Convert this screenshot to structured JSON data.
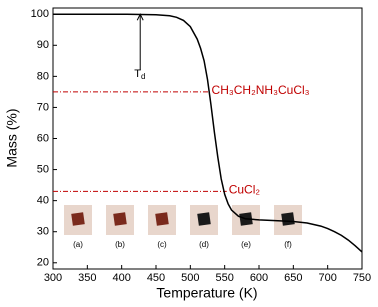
{
  "chart_data": {
    "type": "line",
    "x_label": "Temperature (K)",
    "y_label": "Mass (%)",
    "x": [
      300,
      350,
      400,
      450,
      470,
      480,
      490,
      500,
      510,
      515,
      520,
      525,
      530,
      535,
      540,
      545,
      550,
      555,
      560,
      570,
      580,
      600,
      620,
      650,
      670,
      690,
      700,
      710,
      720,
      730,
      740,
      750
    ],
    "values": [
      100,
      100,
      100,
      99.8,
      99.5,
      99,
      98,
      96,
      92,
      89,
      85,
      79,
      71,
      62,
      54,
      47,
      42,
      39,
      37,
      35,
      34.2,
      33.8,
      33.6,
      33.3,
      32.8,
      31.8,
      31,
      30,
      28.8,
      27.3,
      25.5,
      23.5
    ],
    "color": "#000000",
    "xlim": [
      300,
      750
    ],
    "ylim": [
      18,
      102
    ],
    "xticks": [
      300,
      350,
      400,
      450,
      500,
      550,
      600,
      650,
      700,
      750
    ],
    "yticks": [
      20,
      30,
      40,
      50,
      60,
      70,
      80,
      90,
      100
    ],
    "reference_lines": [
      {
        "value": 75,
        "x_end": 528,
        "label": "CH₃CH₂NH₃CuCl₃"
      },
      {
        "value": 43,
        "x_end": 553,
        "label": "CuCl₂"
      }
    ],
    "reference_color": "#c00000",
    "td_arrow": {
      "x": 427,
      "from": 100,
      "to": 82,
      "label": "T",
      "label_sub": "d"
    },
    "photo_labels": [
      "(a)",
      "(b)",
      "(c)",
      "(d)",
      "(e)",
      "(f)"
    ]
  }
}
